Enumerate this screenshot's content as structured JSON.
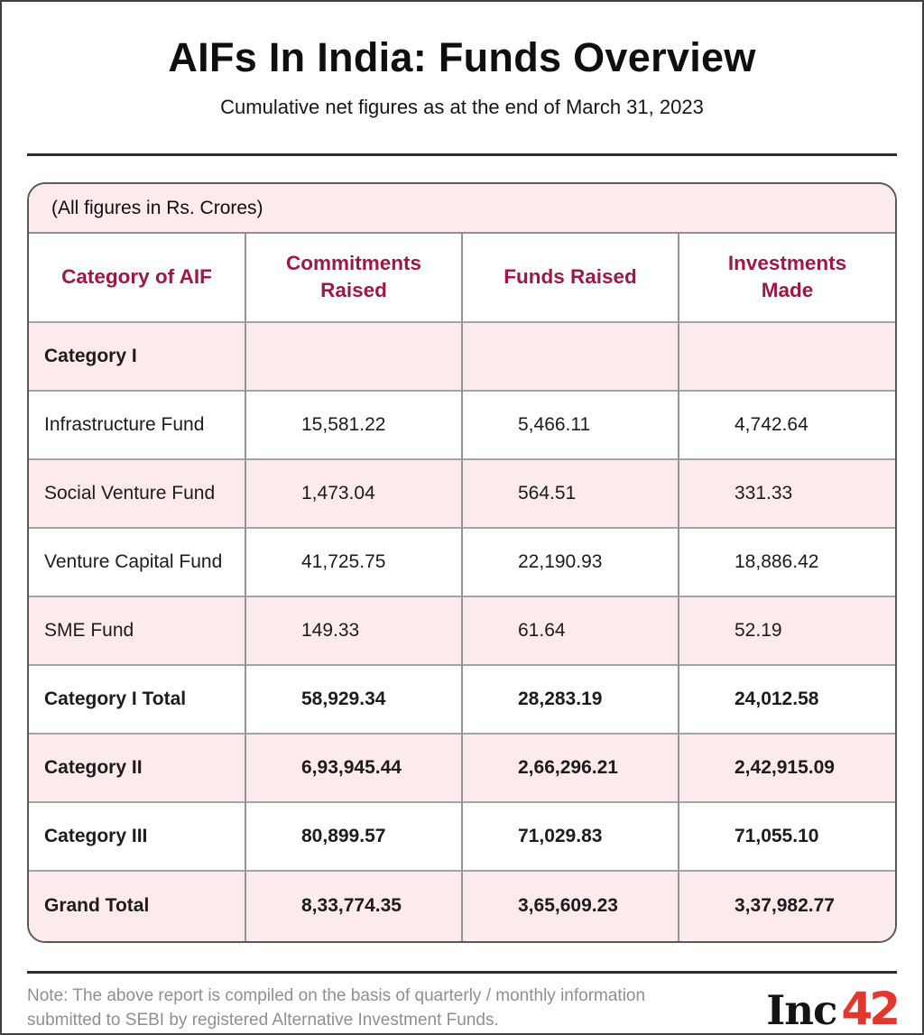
{
  "header": {
    "title": "AIFs In India: Funds Overview",
    "subtitle": "Cumulative net figures as at the end of March 31, 2023"
  },
  "table": {
    "units_note": "(All figures in Rs. Crores)",
    "columns": [
      "Category of AIF",
      "Commitments Raised",
      "Funds Raised",
      "Investments Made"
    ],
    "rows": [
      {
        "label": "Category I",
        "values": [
          "",
          "",
          ""
        ]
      },
      {
        "label": "Infrastructure Fund",
        "values": [
          "15,581.22",
          "5,466.11",
          "4,742.64"
        ]
      },
      {
        "label": "Social Venture Fund",
        "values": [
          "1,473.04",
          "564.51",
          "331.33"
        ]
      },
      {
        "label": "Venture Capital Fund",
        "values": [
          "41,725.75",
          "22,190.93",
          "18,886.42"
        ]
      },
      {
        "label": "SME Fund",
        "values": [
          "149.33",
          "61.64",
          "52.19"
        ]
      },
      {
        "label": "Category I Total",
        "values": [
          "58,929.34",
          "28,283.19",
          "24,012.58"
        ]
      },
      {
        "label": "Category II",
        "values": [
          "6,93,945.44",
          "2,66,296.21",
          "2,42,915.09"
        ]
      },
      {
        "label": "Category III",
        "values": [
          "80,899.57",
          "71,029.83",
          "71,055.10"
        ]
      },
      {
        "label": "Grand Total",
        "values": [
          "8,33,774.35",
          "3,65,609.23",
          "3,37,982.77"
        ]
      }
    ]
  },
  "footer": {
    "note_lines": [
      "Note: The above report is compiled on the basis of quarterly / monthly information",
      "submitted to SEBI by registered Alternative Investment Funds."
    ],
    "logo_black": "Inc",
    "logo_red": "42"
  },
  "colors": {
    "header_maroon": "#9e1843",
    "row_pink": "#fdeaec",
    "grid_gray": "#949494",
    "card_border": "#585858",
    "divider": "#2c2c2c",
    "note_gray": "#8f8f8f",
    "logo_red": "#e2372c"
  },
  "chart_data": {
    "type": "table",
    "title": "AIFs In India: Funds Overview",
    "subtitle": "Cumulative net figures as at the end of March 31, 2023",
    "units": "Rs. Crores",
    "columns": [
      "Category of AIF",
      "Commitments Raised",
      "Funds Raised",
      "Investments Made"
    ],
    "rows": [
      {
        "category": "Category I",
        "commitments_raised": null,
        "funds_raised": null,
        "investments_made": null
      },
      {
        "category": "Infrastructure Fund",
        "commitments_raised": 15581.22,
        "funds_raised": 5466.11,
        "investments_made": 4742.64
      },
      {
        "category": "Social Venture Fund",
        "commitments_raised": 1473.04,
        "funds_raised": 564.51,
        "investments_made": 331.33
      },
      {
        "category": "Venture Capital Fund",
        "commitments_raised": 41725.75,
        "funds_raised": 22190.93,
        "investments_made": 18886.42
      },
      {
        "category": "SME Fund",
        "commitments_raised": 149.33,
        "funds_raised": 61.64,
        "investments_made": 52.19
      },
      {
        "category": "Category I Total",
        "commitments_raised": 58929.34,
        "funds_raised": 28283.19,
        "investments_made": 24012.58
      },
      {
        "category": "Category II",
        "commitments_raised": 693945.44,
        "funds_raised": 266296.21,
        "investments_made": 242915.09
      },
      {
        "category": "Category III",
        "commitments_raised": 80899.57,
        "funds_raised": 71029.83,
        "investments_made": 71055.1
      },
      {
        "category": "Grand Total",
        "commitments_raised": 833774.35,
        "funds_raised": 365609.23,
        "investments_made": 337982.77
      }
    ]
  }
}
